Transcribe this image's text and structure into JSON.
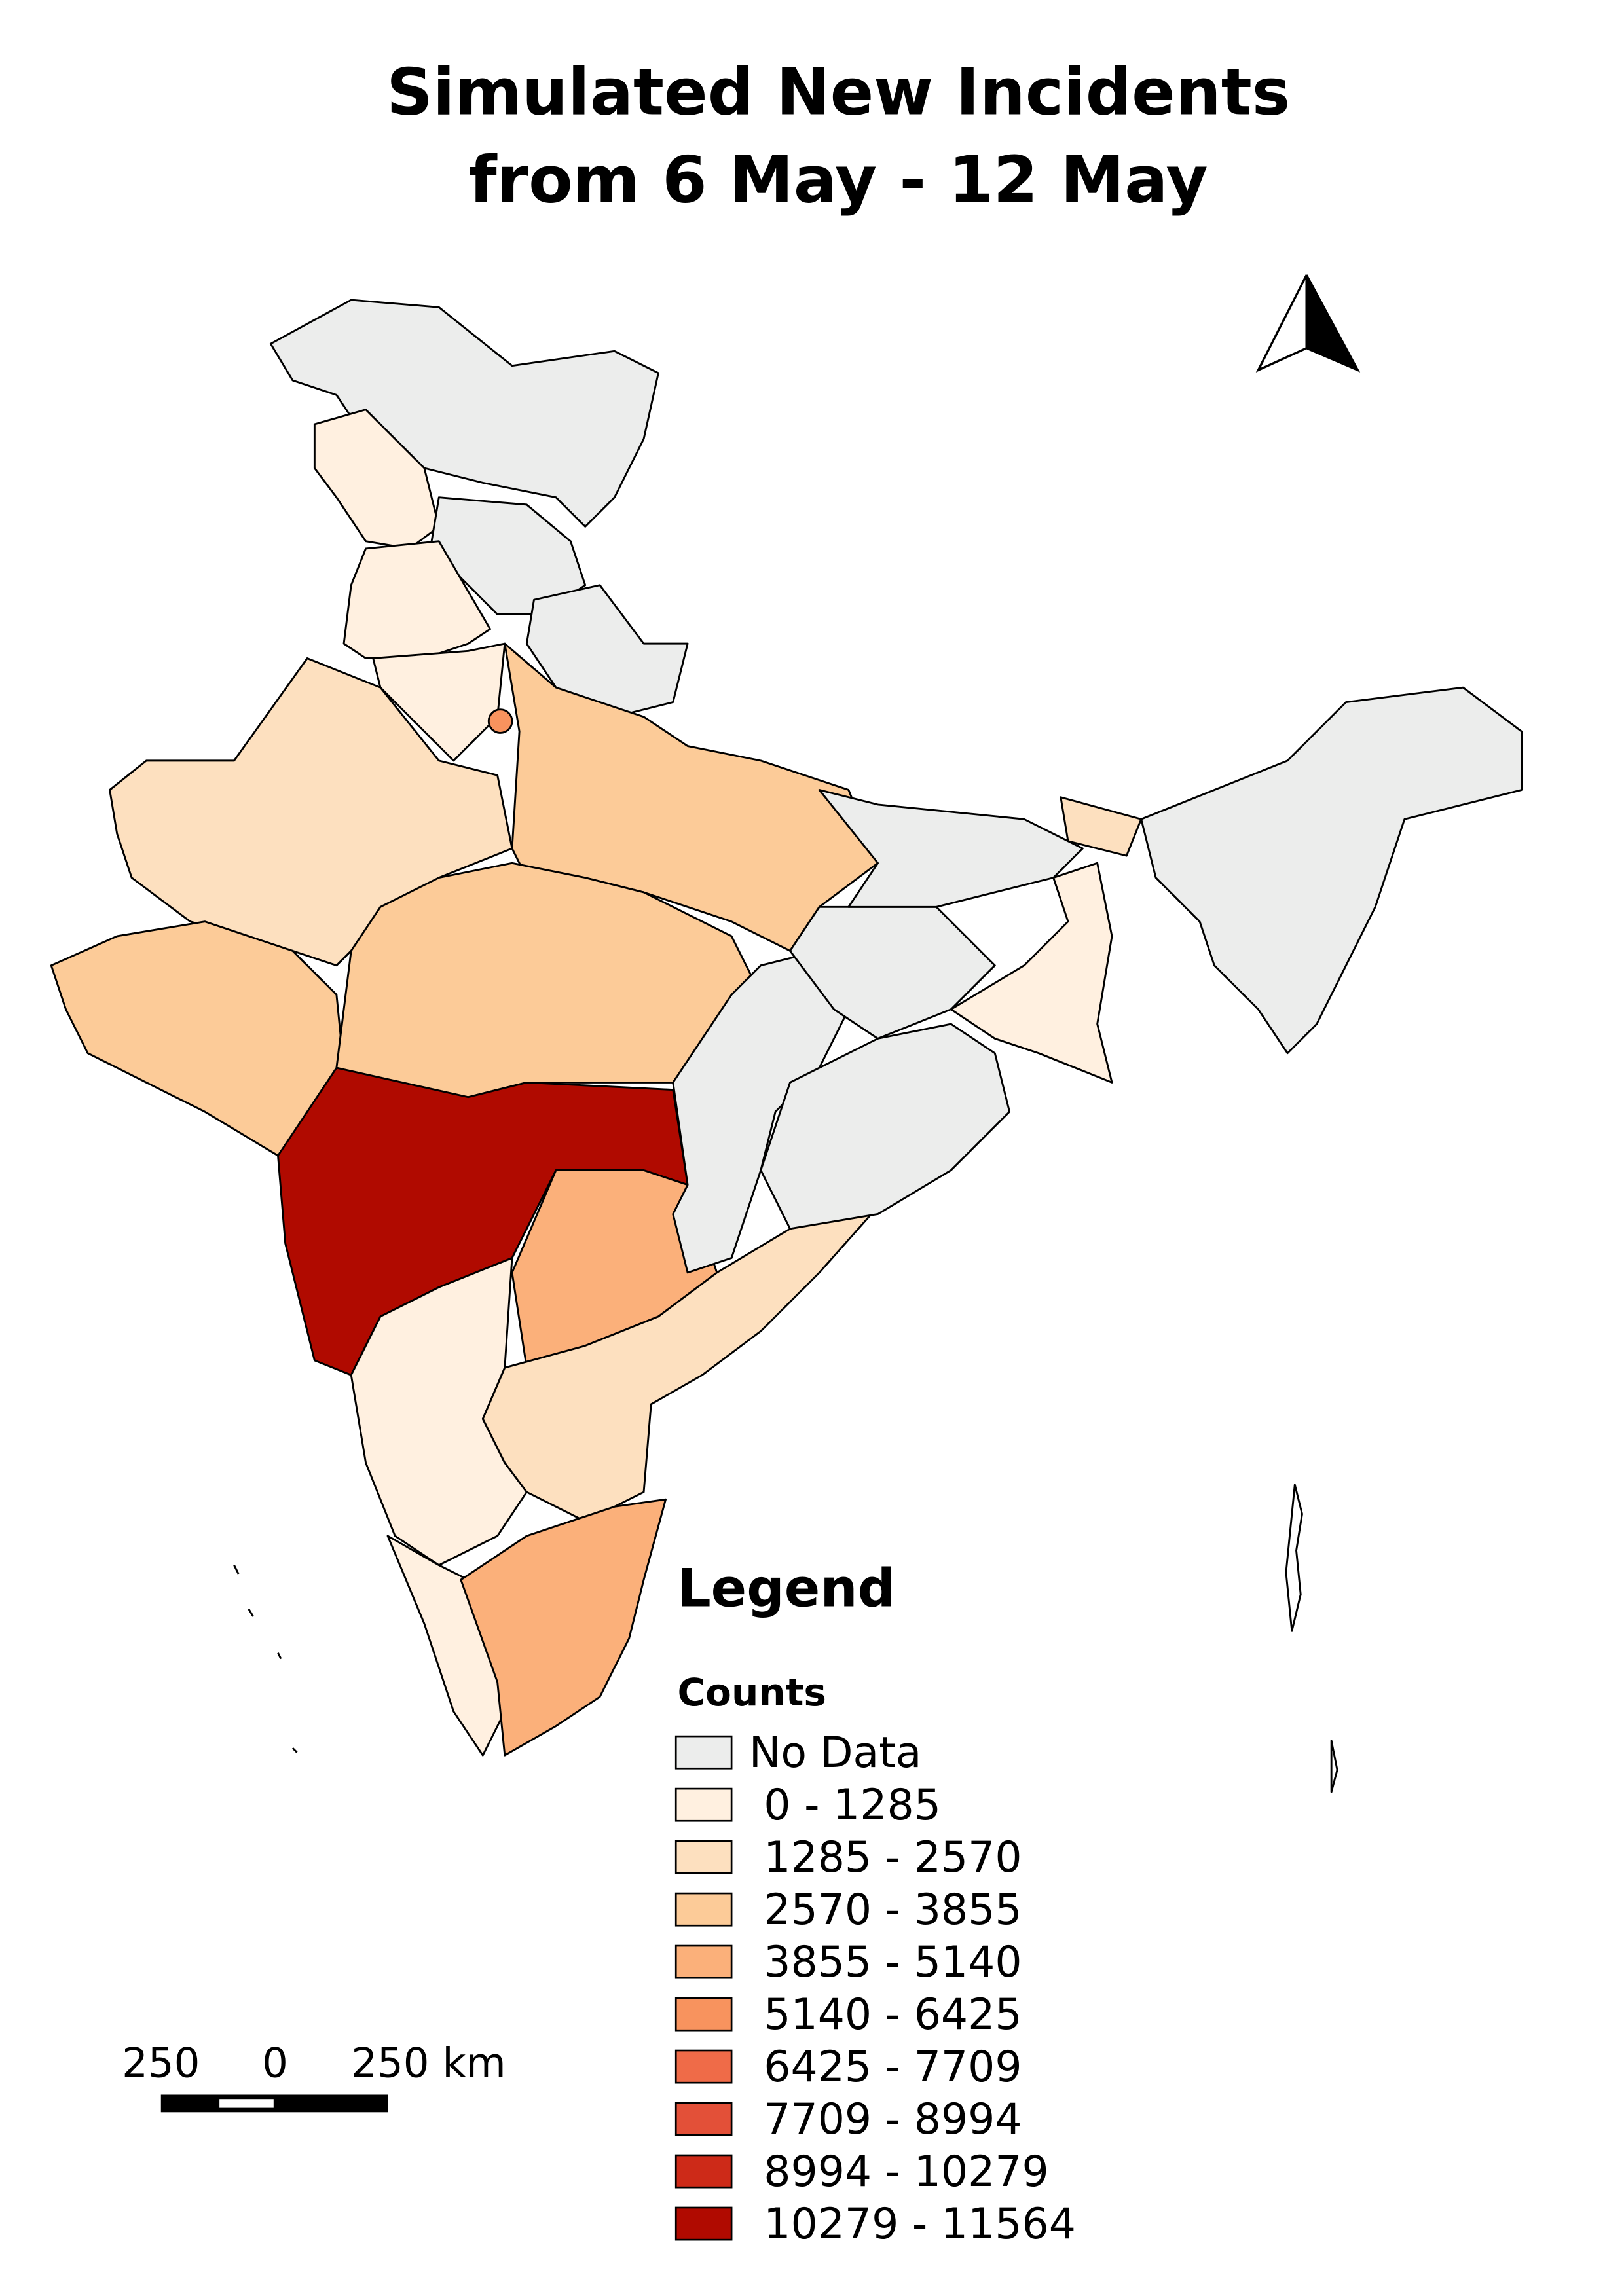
{
  "title": {
    "lines": [
      "Simulated New Incidents",
      "from 6 May - 12 May"
    ]
  },
  "legend": {
    "heading": "Legend",
    "subheading": "Counts",
    "items": [
      {
        "label": "No Data",
        "color": "#ecedec"
      },
      {
        "label": "0 - 1285",
        "color": "#fff0e0"
      },
      {
        "label": "1285 - 2570",
        "color": "#fde0bf"
      },
      {
        "label": "2570 - 3855",
        "color": "#fccb98"
      },
      {
        "label": "3855 - 5140",
        "color": "#fbb07a"
      },
      {
        "label": "5140 - 6425",
        "color": "#f8935e"
      },
      {
        "label": "6425 - 7709",
        "color": "#ef6b48"
      },
      {
        "label": "7709 - 8994",
        "color": "#e35038"
      },
      {
        "label": "8994 - 10279",
        "color": "#cd2a18"
      },
      {
        "label": "10279 - 11564",
        "color": "#b00a00"
      }
    ]
  },
  "scale_bar": {
    "labels": [
      "250",
      "0",
      "250 km"
    ]
  }
}
